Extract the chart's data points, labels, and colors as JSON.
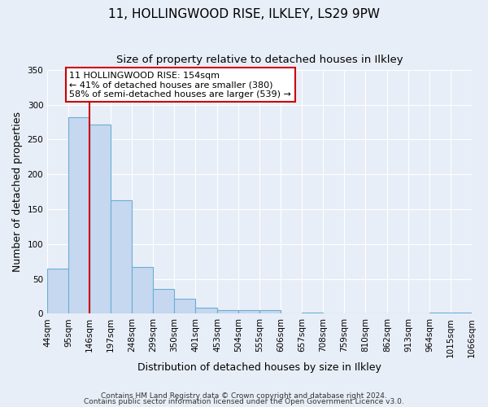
{
  "title": "11, HOLLINGWOOD RISE, ILKLEY, LS29 9PW",
  "subtitle": "Size of property relative to detached houses in Ilkley",
  "xlabel": "Distribution of detached houses by size in Ilkley",
  "ylabel": "Number of detached properties",
  "bin_edges": [
    44,
    95,
    146,
    197,
    248,
    299,
    350,
    401,
    453,
    504,
    555,
    606,
    657,
    708,
    759,
    810,
    862,
    913,
    964,
    1015,
    1066
  ],
  "bin_labels": [
    "44sqm",
    "95sqm",
    "146sqm",
    "197sqm",
    "248sqm",
    "299sqm",
    "350sqm",
    "401sqm",
    "453sqm",
    "504sqm",
    "555sqm",
    "606sqm",
    "657sqm",
    "708sqm",
    "759sqm",
    "810sqm",
    "862sqm",
    "913sqm",
    "964sqm",
    "1015sqm",
    "1066sqm"
  ],
  "bar_heights": [
    65,
    282,
    272,
    163,
    67,
    35,
    21,
    9,
    5,
    5,
    5,
    0,
    2,
    0,
    0,
    0,
    0,
    0,
    2,
    2
  ],
  "bar_color": "#c5d8ef",
  "bar_edge_color": "#6baed6",
  "vline_x": 146,
  "vline_color": "#cc0000",
  "ylim": [
    0,
    350
  ],
  "yticks": [
    0,
    50,
    100,
    150,
    200,
    250,
    300,
    350
  ],
  "annotation_text": "11 HOLLINGWOOD RISE: 154sqm\n← 41% of detached houses are smaller (380)\n58% of semi-detached houses are larger (539) →",
  "annotation_box_color": "#ffffff",
  "annotation_box_edge": "#cc0000",
  "footer1": "Contains HM Land Registry data © Crown copyright and database right 2024.",
  "footer2": "Contains public sector information licensed under the Open Government Licence v3.0.",
  "background_color": "#e8eef7",
  "grid_color": "#ffffff",
  "title_fontsize": 11,
  "subtitle_fontsize": 9.5,
  "axis_label_fontsize": 9,
  "tick_fontsize": 7.5,
  "footer_fontsize": 6.5,
  "annotation_fontsize": 8
}
